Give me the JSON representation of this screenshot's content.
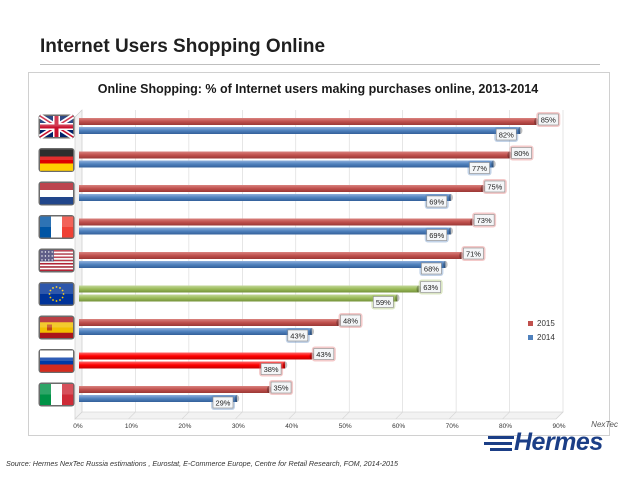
{
  "slide": {
    "title": "Internet Users Shopping Online",
    "source": "Source: Hermes NexTec Russia estimations , Eurostat, E-Commerce Europe, Centre for Retail Research, FOM, 2014-2015"
  },
  "logo": {
    "nextec": "NexTec",
    "hermes": "Hermes"
  },
  "colors": {
    "s2015": "#c0504d",
    "s2014": "#4f81bd",
    "eu": "#9bbb59",
    "russia": "#ff0000"
  },
  "chart_data": {
    "type": "bar",
    "orientation": "horizontal",
    "title": "Online Shopping: % of Internet users making purchases online, 2013-2014",
    "categories": [
      "uk-flag-icon",
      "germany-flag-icon",
      "netherlands-flag-icon",
      "france-flag-icon",
      "usa-flag-icon",
      "eu-flag-icon",
      "spain-flag-icon",
      "russia-flag-icon",
      "italy-flag-icon"
    ],
    "series": [
      {
        "name": "2015",
        "values": [
          85,
          80,
          75,
          73,
          71,
          63,
          48,
          43,
          35
        ],
        "labels": [
          "85%",
          "80%",
          "75%",
          "73%",
          "71%",
          "63%",
          "48%",
          "43%",
          "35%"
        ]
      },
      {
        "name": "2014",
        "values": [
          82,
          77,
          69,
          69,
          68,
          59,
          43,
          38,
          29
        ],
        "labels": [
          "82%",
          "77%",
          "69%",
          "69%",
          "68%",
          "59%",
          "43%",
          "38%",
          "29%"
        ]
      }
    ],
    "xlim": [
      0,
      90
    ],
    "xticks": [
      "0%",
      "10%",
      "20%",
      "30%",
      "40%",
      "50%",
      "60%",
      "70%",
      "80%",
      "90%"
    ],
    "legend": "right"
  }
}
